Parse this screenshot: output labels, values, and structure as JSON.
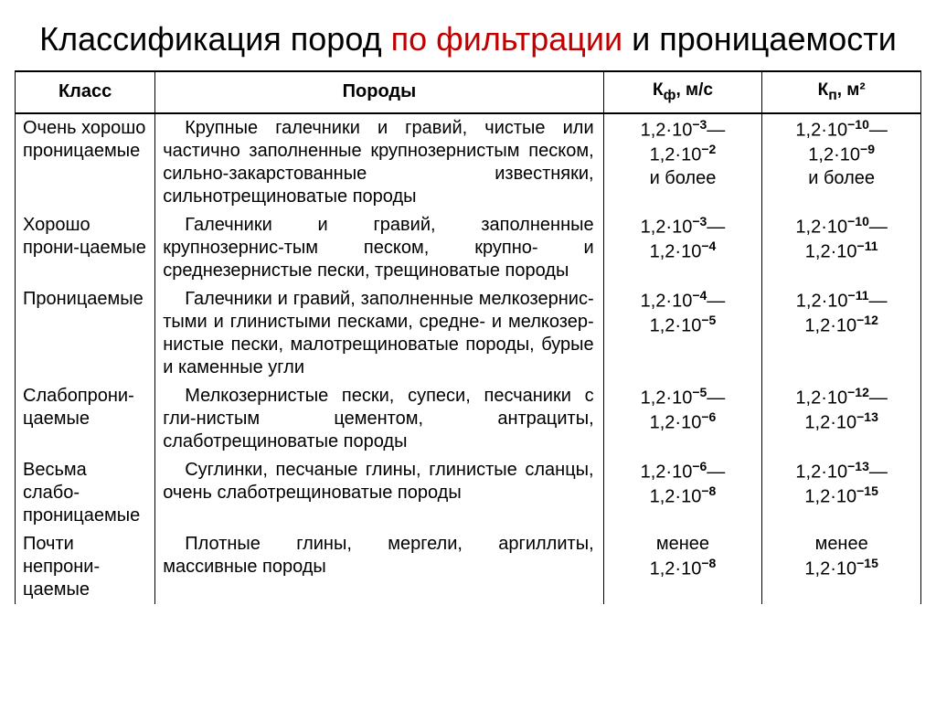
{
  "title": {
    "pre": "Классификация пород ",
    "accent": "по фильтрации",
    "post": " и проницаемости"
  },
  "headers": {
    "class": "Класс",
    "rocks": "Породы",
    "kf": "К<sub>ф</sub>, м/с",
    "kp": "К<sub>п</sub>, м²"
  },
  "rows": [
    {
      "class": "Очень хорошо проницаемые",
      "rocks": "Крупные галечники и гравий, чистые или частично заполненные крупнозернистым песком, сильно-закарстованные известняки, сильнотрещиноватые породы",
      "kf": "1,2·10<sup>−3</sup>—<br>1,2·10<sup>−2</sup><br>и более",
      "kp": "1,2·10<sup>−10</sup>—<br>1,2·10<sup>−9</sup><br>и более"
    },
    {
      "class": "Хорошо прони-цаемые",
      "rocks": "Галечники и гравий, заполненные крупнозернис-тым песком, крупно- и среднезернистые пески, трещиноватые породы",
      "kf": "1,2·10<sup>−3</sup>—<br>1,2·10<sup>−4</sup>",
      "kp": "1,2·10<sup>−10</sup>—<br>1,2·10<sup>−11</sup>"
    },
    {
      "class": "Проницаемые",
      "rocks": "Галечники и гравий, заполненные мелкозернис-тыми и глинистыми песками, средне- и мелкозер-нистые пески, малотрещиноватые породы, бурые и каменные угли",
      "kf": "1,2·10<sup>−4</sup>—<br>1,2·10<sup>−5</sup>",
      "kp": "1,2·10<sup>−11</sup>—<br>1,2·10<sup>−12</sup>"
    },
    {
      "class": "Слабопрони-цаемые",
      "rocks": "Мелкозернистые пески, супеси, песчаники с гли-нистым цементом, антрациты, слаботрещиноватые породы",
      "kf": "1,2·10<sup>−5</sup>—<br>1,2·10<sup>−6</sup>",
      "kp": "1,2·10<sup>−12</sup>—<br>1,2·10<sup>−13</sup>"
    },
    {
      "class": "Весьма слабо-проницаемые",
      "rocks": "Суглинки, песчаные глины, глинистые сланцы, очень слаботрещиноватые породы",
      "kf": "1,2·10<sup>−6</sup>—<br>1,2·10<sup>−8</sup>",
      "kp": "1,2·10<sup>−13</sup>—<br>1,2·10<sup>−15</sup>"
    },
    {
      "class": "Почти непрони-цаемые",
      "rocks": "Плотные глины, мергели, аргиллиты, массивные породы",
      "kf": "менее<br>1,2·10<sup>−8</sup>",
      "kp": "менее<br>1,2·10<sup>−15</sup>"
    }
  ],
  "colors": {
    "accent": "#c00000",
    "text": "#000000",
    "background": "#ffffff",
    "border": "#000000"
  },
  "fontsizes": {
    "title": 36,
    "body": 20
  }
}
